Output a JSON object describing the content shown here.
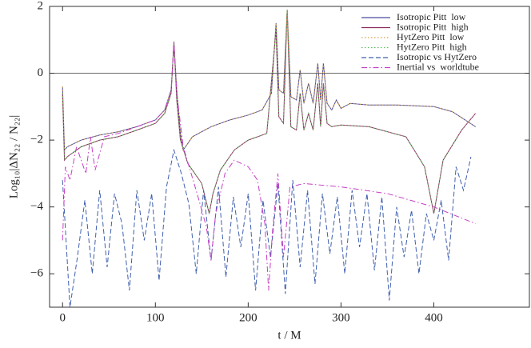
{
  "chart_data": {
    "type": "line",
    "xlabel": "t / M",
    "ylabel": "Log₁₀|ΔN₂₂ / N₂₂|",
    "xlim": [
      -14,
      503
    ],
    "ylim": [
      -7,
      2
    ],
    "xticks": [
      0,
      100,
      200,
      300,
      400
    ],
    "yticks": [
      {
        "value": -6,
        "label": "−6"
      },
      {
        "value": -4,
        "label": "−4"
      },
      {
        "value": -2,
        "label": "−2"
      },
      0,
      2
    ],
    "legend": "upper right",
    "series": [
      {
        "name": "Isotropic Pitt  low",
        "color": "#4b4b9e",
        "style": "solid",
        "x": [
          0,
          2,
          5,
          20,
          40,
          60,
          80,
          100,
          110,
          117,
          120,
          123,
          127,
          130,
          140,
          160,
          180,
          200,
          215,
          225,
          230,
          233,
          238,
          242,
          246,
          252,
          256,
          260,
          265,
          270,
          275,
          278,
          281,
          285,
          290,
          295,
          300,
          310,
          330,
          360,
          400,
          420,
          445
        ],
        "values": [
          -0.4,
          -2.3,
          -2.2,
          -2.0,
          -1.85,
          -1.75,
          -1.6,
          -1.4,
          -1.1,
          -0.5,
          0.9,
          -0.5,
          -1.8,
          -2.3,
          -1.9,
          -1.6,
          -1.4,
          -1.25,
          -1.1,
          -0.6,
          1.5,
          -0.5,
          -0.6,
          1.9,
          -0.7,
          -0.8,
          0.1,
          -0.9,
          -0.3,
          -0.9,
          0.3,
          -0.8,
          0.3,
          -0.9,
          -1.1,
          -0.8,
          -1.05,
          -0.9,
          -0.95,
          -0.95,
          -1.0,
          -1.15,
          -1.6
        ]
      },
      {
        "name": "Isotropic Pitt  high",
        "color": "#8b2a5e",
        "style": "solid",
        "x": [
          0,
          2,
          5,
          20,
          40,
          60,
          80,
          100,
          110,
          117,
          120,
          123,
          127,
          135,
          150,
          158,
          162,
          170,
          185,
          200,
          220,
          230,
          233,
          238,
          242,
          246,
          252,
          256,
          260,
          265,
          270,
          275,
          278,
          281,
          285,
          290,
          300,
          330,
          370,
          390,
          400,
          410,
          430,
          445
        ],
        "values": [
          -0.6,
          -2.6,
          -2.5,
          -2.2,
          -2.0,
          -1.9,
          -1.7,
          -1.5,
          -1.2,
          -0.6,
          0.95,
          -0.8,
          -2.0,
          -2.7,
          -3.3,
          -4.2,
          -3.6,
          -2.9,
          -2.3,
          -2.0,
          -1.8,
          1.3,
          -1.3,
          -1.5,
          1.9,
          -1.6,
          -1.7,
          -0.6,
          -1.7,
          -1.2,
          -1.7,
          -0.3,
          -1.6,
          -0.3,
          -1.5,
          -1.6,
          -1.55,
          -1.6,
          -1.9,
          -2.8,
          -4.2,
          -2.6,
          -1.7,
          -1.2
        ]
      },
      {
        "name": "HytZero Pitt  low",
        "color": "#d9a040",
        "style": "dotted",
        "x": [
          0,
          2,
          5,
          20,
          40,
          60,
          80,
          100,
          110,
          117,
          120,
          123,
          127,
          130,
          140,
          160,
          180,
          200,
          215,
          225,
          230,
          233,
          238,
          242,
          246,
          252,
          256,
          260,
          265,
          270,
          275,
          278,
          281,
          285,
          290,
          295,
          300,
          310,
          330,
          360,
          400,
          420,
          445
        ],
        "values": [
          -0.4,
          -2.3,
          -2.2,
          -2.0,
          -1.85,
          -1.75,
          -1.6,
          -1.4,
          -1.1,
          -0.5,
          0.9,
          -0.5,
          -1.8,
          -2.3,
          -1.9,
          -1.6,
          -1.4,
          -1.25,
          -1.1,
          -0.6,
          1.5,
          -0.5,
          -0.6,
          1.9,
          -0.7,
          -0.8,
          0.1,
          -0.9,
          -0.3,
          -0.9,
          0.3,
          -0.8,
          0.3,
          -0.9,
          -1.1,
          -0.8,
          -1.05,
          -0.9,
          -0.95,
          -0.95,
          -1.0,
          -1.15,
          -1.6
        ]
      },
      {
        "name": "HytZero Pitt  high",
        "color": "#5cbf5c",
        "style": "dotted",
        "x": [
          0,
          2,
          5,
          20,
          40,
          60,
          80,
          100,
          110,
          117,
          120,
          123,
          127,
          135,
          150,
          158,
          162,
          170,
          185,
          200,
          220,
          230,
          233,
          238,
          242,
          246,
          252,
          256,
          260,
          265,
          270,
          275,
          278,
          281,
          285,
          290,
          300,
          330,
          370,
          390,
          400,
          410,
          430,
          445
        ],
        "values": [
          -0.6,
          -2.6,
          -2.5,
          -2.2,
          -2.0,
          -1.9,
          -1.7,
          -1.5,
          -1.2,
          -0.6,
          0.95,
          -0.8,
          -2.0,
          -2.7,
          -3.3,
          -4.2,
          -3.6,
          -2.9,
          -2.3,
          -2.0,
          -1.8,
          1.3,
          -1.3,
          -1.5,
          1.9,
          -1.6,
          -1.7,
          -0.6,
          -1.7,
          -1.2,
          -1.7,
          -0.3,
          -1.6,
          -0.3,
          -1.5,
          -1.6,
          -1.55,
          -1.6,
          -1.9,
          -2.8,
          -4.2,
          -2.6,
          -1.7,
          -1.2
        ]
      },
      {
        "name": "Isotropic vs HytZero",
        "color": "#3f5fae",
        "style": "dashed",
        "x": [
          0,
          8,
          16,
          24,
          32,
          40,
          48,
          56,
          64,
          72,
          80,
          88,
          96,
          104,
          112,
          120,
          128,
          136,
          144,
          152,
          160,
          168,
          176,
          184,
          192,
          200,
          208,
          216,
          224,
          232,
          240,
          248,
          256,
          264,
          272,
          280,
          288,
          296,
          304,
          312,
          320,
          328,
          336,
          344,
          352,
          360,
          368,
          376,
          384,
          392,
          400,
          408,
          416,
          424,
          432,
          440
        ],
        "values": [
          -3.2,
          -7,
          -5.5,
          -3.8,
          -6,
          -3.5,
          -5.8,
          -3.6,
          -4.5,
          -6.5,
          -3.5,
          -5,
          -3.6,
          -6.2,
          -3.4,
          -2.3,
          -3,
          -3.9,
          -6,
          -3.5,
          -5.6,
          -3.4,
          -6.1,
          -3.7,
          -5.2,
          -3.6,
          -6.5,
          -3.8,
          -5.5,
          -3.3,
          -6.6,
          -3.2,
          -5.8,
          -3.5,
          -6.3,
          -3.6,
          -5.4,
          -3.7,
          -6,
          -3.5,
          -5.2,
          -3.6,
          -5.9,
          -3.7,
          -6.8,
          -4,
          -5.5,
          -4.1,
          -6,
          -4.2,
          -5,
          -3.8,
          -5.6,
          -2.8,
          -3.5,
          -2.5
        ]
      },
      {
        "name": "Inertial vs  worldtube",
        "color": "#c63fc6",
        "style": "dashdot",
        "x": [
          0,
          3,
          8,
          15,
          25,
          30,
          35,
          45,
          60,
          80,
          100,
          110,
          117,
          120,
          123,
          130,
          145,
          155,
          160,
          165,
          175,
          185,
          200,
          210,
          218,
          222,
          226,
          232,
          238,
          245,
          260,
          300,
          350,
          400,
          445
        ],
        "values": [
          -5,
          -2.8,
          -3.2,
          -2.2,
          -3,
          -1.9,
          -2.9,
          -1.9,
          -1.8,
          -1.6,
          -1.4,
          -1.1,
          -0.5,
          0.9,
          -0.6,
          -2.2,
          -3.6,
          -4.6,
          -5.6,
          -4.2,
          -3.0,
          -2.6,
          -2.8,
          -3.2,
          -4.5,
          -6.5,
          -4.8,
          -3.0,
          -5.5,
          -3.4,
          -3.3,
          -3.4,
          -3.6,
          -4.0,
          -4.5
        ]
      }
    ]
  }
}
